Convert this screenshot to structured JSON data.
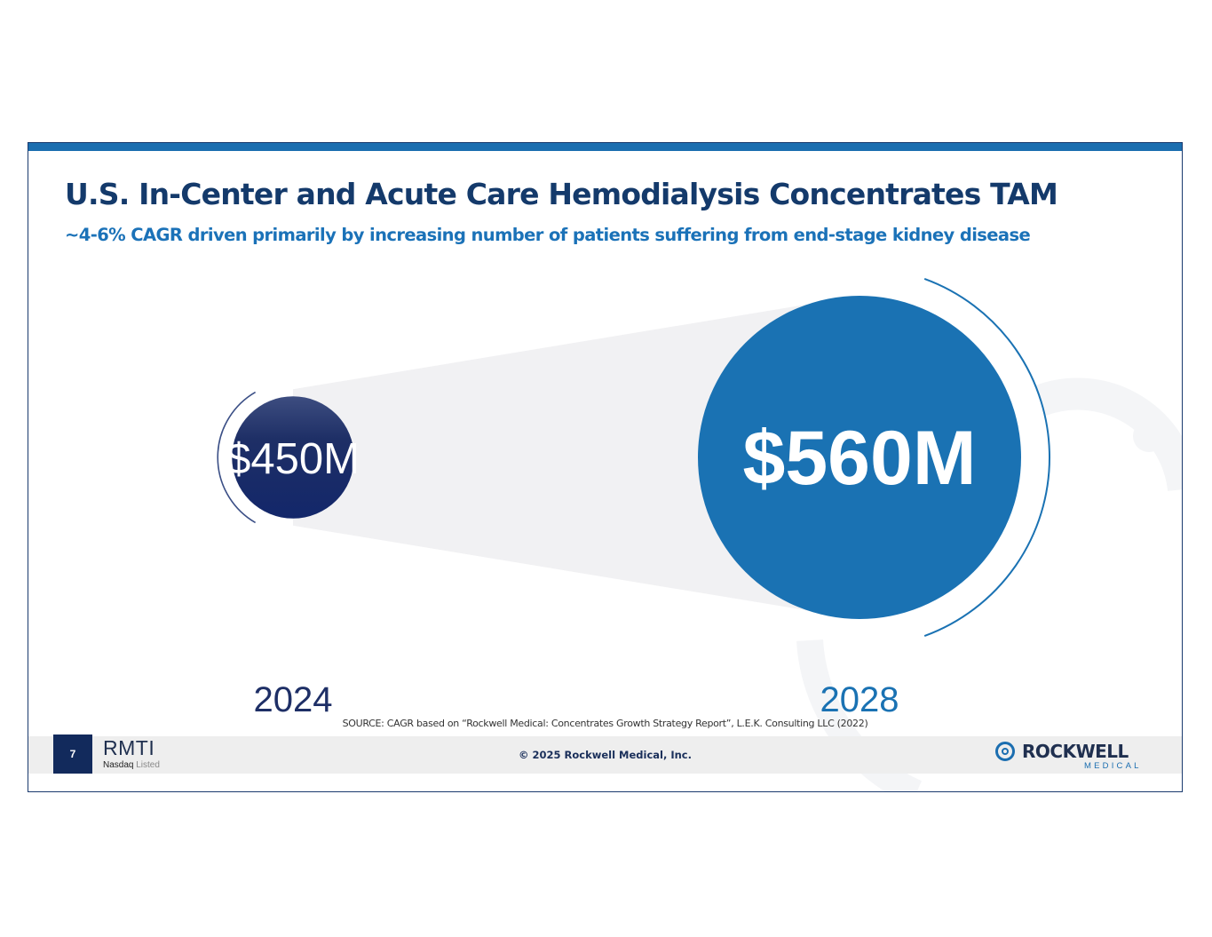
{
  "slide": {
    "title": "U.S. In-Center and Acute Care Hemodialysis Concentrates TAM",
    "subtitle": "~4-6% CAGR driven primarily by increasing number of patients suffering from end-stage kidney disease",
    "source": "SOURCE: CAGR based on “Rockwell Medical: Concentrates Growth Strategy Report”, L.E.K. Consulting LLC (2022)"
  },
  "footer": {
    "page_number": "7",
    "ticker": "RMTI",
    "listed_prefix": "Nasdaq",
    "listed_suffix": " Listed",
    "copyright": "© 2025 Rockwell Medical, Inc.",
    "logo_word": "ROCKWELL",
    "logo_sub": "MEDICAL"
  },
  "chart_data": {
    "type": "bubble",
    "categories": [
      "2024",
      "2028"
    ],
    "values": [
      450,
      560
    ],
    "value_labels": [
      "$450M",
      "$560M"
    ],
    "colors": [
      "#1e2f66",
      "#1a72b3"
    ]
  }
}
